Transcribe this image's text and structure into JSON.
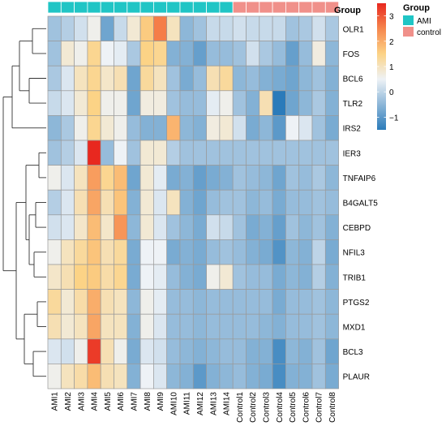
{
  "chart_data": {
    "type": "heatmap",
    "annotation_title": "Group",
    "legend_title": "Group",
    "groups": [
      {
        "name": "AMI",
        "color": "#20c5c5"
      },
      {
        "name": "control",
        "color": "#f0908a"
      }
    ],
    "colorbar": {
      "min": -1.5,
      "max": 3.5,
      "ticks": [
        3,
        2,
        1,
        0,
        -1
      ],
      "tick_labels": [
        "3",
        "2",
        "1",
        "0",
        "−1"
      ],
      "stops": [
        {
          "value": -1.5,
          "color": "#2b7bba"
        },
        {
          "value": 0.5,
          "color": "#eef2f6"
        },
        {
          "value": 1.5,
          "color": "#fcd386"
        },
        {
          "value": 2.5,
          "color": "#f6864d"
        },
        {
          "value": 3.5,
          "color": "#e8281f"
        }
      ]
    },
    "columns": [
      "AMI1",
      "AMI2",
      "AMI3",
      "AMI4",
      "AMI5",
      "AMI6",
      "AMI7",
      "AMI8",
      "AMI9",
      "AMI10",
      "AMI11",
      "AMI12",
      "AMI13",
      "AMI14",
      "Control1",
      "Control2",
      "Control3",
      "Control4",
      "Control5",
      "Control6",
      "Control7",
      "Control8"
    ],
    "column_groups": [
      "AMI",
      "AMI",
      "AMI",
      "AMI",
      "AMI",
      "AMI",
      "AMI",
      "AMI",
      "AMI",
      "AMI",
      "AMI",
      "AMI",
      "AMI",
      "AMI",
      "control",
      "control",
      "control",
      "control",
      "control",
      "control",
      "control",
      "control"
    ],
    "rows": [
      "OLR1",
      "FOS",
      "BCL6",
      "TLR2",
      "IRS2",
      "IER3",
      "TNFAIP6",
      "B4GALT5",
      "CEBPD",
      "NFIL3",
      "TRIB1",
      "PTGS2",
      "MXD1",
      "BCL3",
      "PLAUR"
    ],
    "values": [
      [
        -0.3,
        -0.1,
        0.2,
        0.6,
        -0.8,
        0.1,
        0.8,
        1.6,
        2.6,
        1.0,
        -0.5,
        -0.3,
        0.1,
        0.1,
        0.2,
        0.1,
        0.1,
        0.1,
        -0.3,
        -0.2,
        0.2,
        -0.2
      ],
      [
        -0.3,
        0.8,
        0.6,
        1.4,
        0.5,
        0.4,
        -0.2,
        1.5,
        1.4,
        -0.6,
        -0.6,
        -0.9,
        -0.4,
        -0.4,
        -0.3,
        0.2,
        -0.2,
        -0.4,
        -0.9,
        -0.4,
        0.7,
        -0.5
      ],
      [
        -0.2,
        0.3,
        1.0,
        1.4,
        0.9,
        1.1,
        -0.8,
        1.3,
        1.0,
        -0.3,
        -0.7,
        -0.4,
        1.1,
        1.3,
        -0.5,
        -0.4,
        -0.6,
        -0.7,
        -0.8,
        -0.5,
        -0.3,
        -0.6
      ],
      [
        0.1,
        0.3,
        0.8,
        1.5,
        0.6,
        0.6,
        -0.8,
        0.7,
        0.7,
        -0.3,
        -0.4,
        -0.4,
        0.4,
        0.6,
        -0.3,
        -0.6,
        1.1,
        -1.5,
        -0.8,
        -0.5,
        -0.2,
        -0.6
      ],
      [
        -0.5,
        -0.2,
        0.6,
        1.4,
        0.8,
        0.6,
        -0.4,
        -0.6,
        -0.6,
        1.9,
        -0.5,
        -0.6,
        0.7,
        0.8,
        0.2,
        -0.7,
        -0.5,
        -1.0,
        0.5,
        0.3,
        -0.3,
        -0.7
      ],
      [
        -0.3,
        -0.1,
        0.3,
        3.5,
        -0.4,
        0.5,
        -0.3,
        0.8,
        0.8,
        -0.1,
        -0.3,
        -0.3,
        -0.3,
        -0.3,
        -0.3,
        -0.3,
        -0.3,
        -0.3,
        -0.3,
        -0.3,
        -0.3,
        -0.3
      ],
      [
        0.6,
        0.3,
        1.0,
        2.2,
        1.4,
        1.8,
        -0.8,
        0.8,
        0.4,
        -0.7,
        -0.6,
        -0.9,
        -0.7,
        -0.6,
        -0.3,
        -0.4,
        -0.5,
        -0.8,
        -0.3,
        -0.4,
        -0.2,
        -0.5
      ],
      [
        -0.1,
        0.3,
        1.1,
        2.1,
        1.1,
        1.7,
        -0.6,
        0.8,
        0.3,
        1.0,
        -0.6,
        -0.8,
        -0.4,
        -0.3,
        -0.3,
        -0.5,
        -0.4,
        -0.7,
        -0.4,
        -0.4,
        -0.3,
        -0.4
      ],
      [
        0.2,
        0.3,
        0.9,
        1.8,
        0.9,
        2.3,
        -0.5,
        0.8,
        0.3,
        -0.3,
        -0.5,
        -0.7,
        0.2,
        0.1,
        -0.3,
        -0.7,
        -0.6,
        -0.9,
        -0.3,
        -0.5,
        -0.3,
        -0.6
      ],
      [
        0.6,
        1.0,
        1.3,
        1.7,
        1.1,
        1.3,
        -0.7,
        0.5,
        0.5,
        -0.7,
        -0.6,
        -0.7,
        -0.4,
        -0.3,
        -0.4,
        -0.6,
        -0.7,
        -1.1,
        -0.5,
        -0.6,
        0.0,
        -0.7
      ],
      [
        0.9,
        1.1,
        1.5,
        1.6,
        1.2,
        1.4,
        -0.7,
        0.5,
        0.4,
        -0.4,
        -0.6,
        -0.7,
        0.6,
        0.8,
        -0.3,
        -0.4,
        -0.4,
        -0.7,
        -0.5,
        -0.6,
        -0.1,
        -0.6
      ],
      [
        1.3,
        0.8,
        1.2,
        2.0,
        1.1,
        1.0,
        -0.5,
        0.6,
        0.4,
        -0.4,
        -0.4,
        -0.5,
        -0.4,
        -0.4,
        -0.4,
        -0.4,
        -0.4,
        -0.7,
        -0.4,
        -0.4,
        -0.3,
        -0.5
      ],
      [
        1.1,
        0.8,
        1.0,
        2.1,
        1.0,
        1.0,
        -0.6,
        0.6,
        0.3,
        -0.4,
        -0.4,
        -0.5,
        -0.4,
        -0.4,
        -0.4,
        -0.4,
        -0.5,
        -0.6,
        -0.4,
        -0.4,
        -0.3,
        -0.5
      ],
      [
        0.3,
        0.2,
        0.6,
        3.3,
        1.1,
        0.6,
        -0.7,
        0.3,
        0.2,
        -0.4,
        -0.5,
        -0.6,
        -0.5,
        -0.4,
        -0.4,
        -0.6,
        -0.6,
        -1.2,
        -0.5,
        -0.6,
        -0.3,
        -0.8
      ],
      [
        0.6,
        1.0,
        1.2,
        1.8,
        1.1,
        1.0,
        -0.6,
        0.5,
        0.3,
        -0.5,
        -0.6,
        -1.0,
        -0.6,
        -0.5,
        -0.4,
        -0.6,
        -0.7,
        -1.2,
        -0.6,
        -0.6,
        -0.3,
        -0.7
      ]
    ]
  }
}
